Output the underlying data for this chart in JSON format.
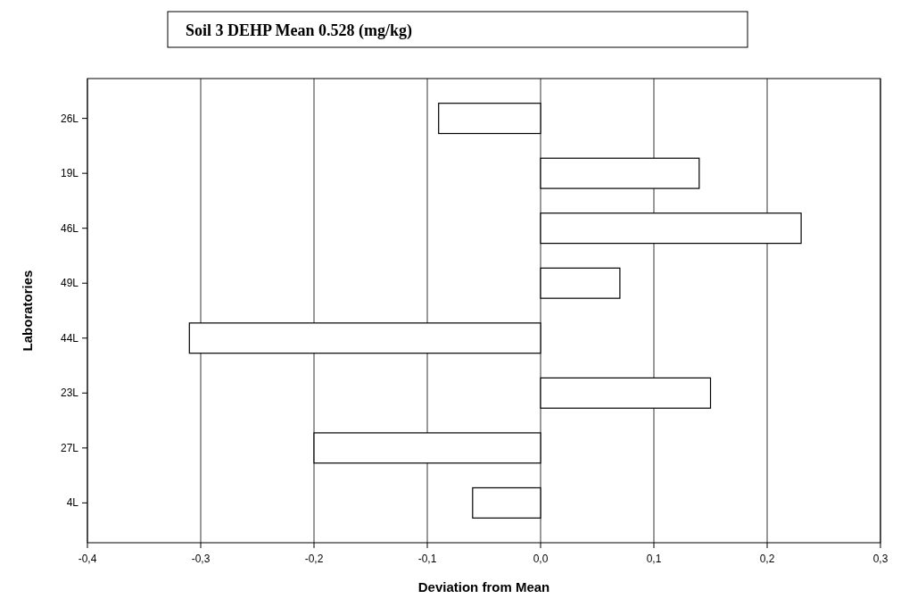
{
  "chart_data": {
    "type": "bar",
    "orientation": "horizontal",
    "title": "Soil 3 DEHP Mean 0.528 (mg/kg)",
    "xlabel": "Deviation from Mean",
    "ylabel": "Laboratories",
    "categories": [
      "26L",
      "19L",
      "46L",
      "49L",
      "44L",
      "23L",
      "27L",
      "4L"
    ],
    "values": [
      -0.09,
      0.14,
      0.23,
      0.07,
      -0.31,
      0.15,
      -0.2,
      -0.06
    ],
    "color": "#ffffff",
    "xlim": [
      -0.4,
      0.3
    ],
    "xticks": [
      {
        "value": -0.4,
        "label": "-0,4"
      },
      {
        "value": -0.3,
        "label": "-0,3"
      },
      {
        "value": -0.2,
        "label": "-0,2"
      },
      {
        "value": -0.1,
        "label": "-0,1"
      },
      {
        "value": 0,
        "label": "0,0"
      },
      {
        "value": 0.1,
        "label": "0,1"
      },
      {
        "value": 0.2,
        "label": "0,2"
      },
      {
        "value": 0.3,
        "label": "0,3"
      }
    ],
    "grid": "x"
  }
}
